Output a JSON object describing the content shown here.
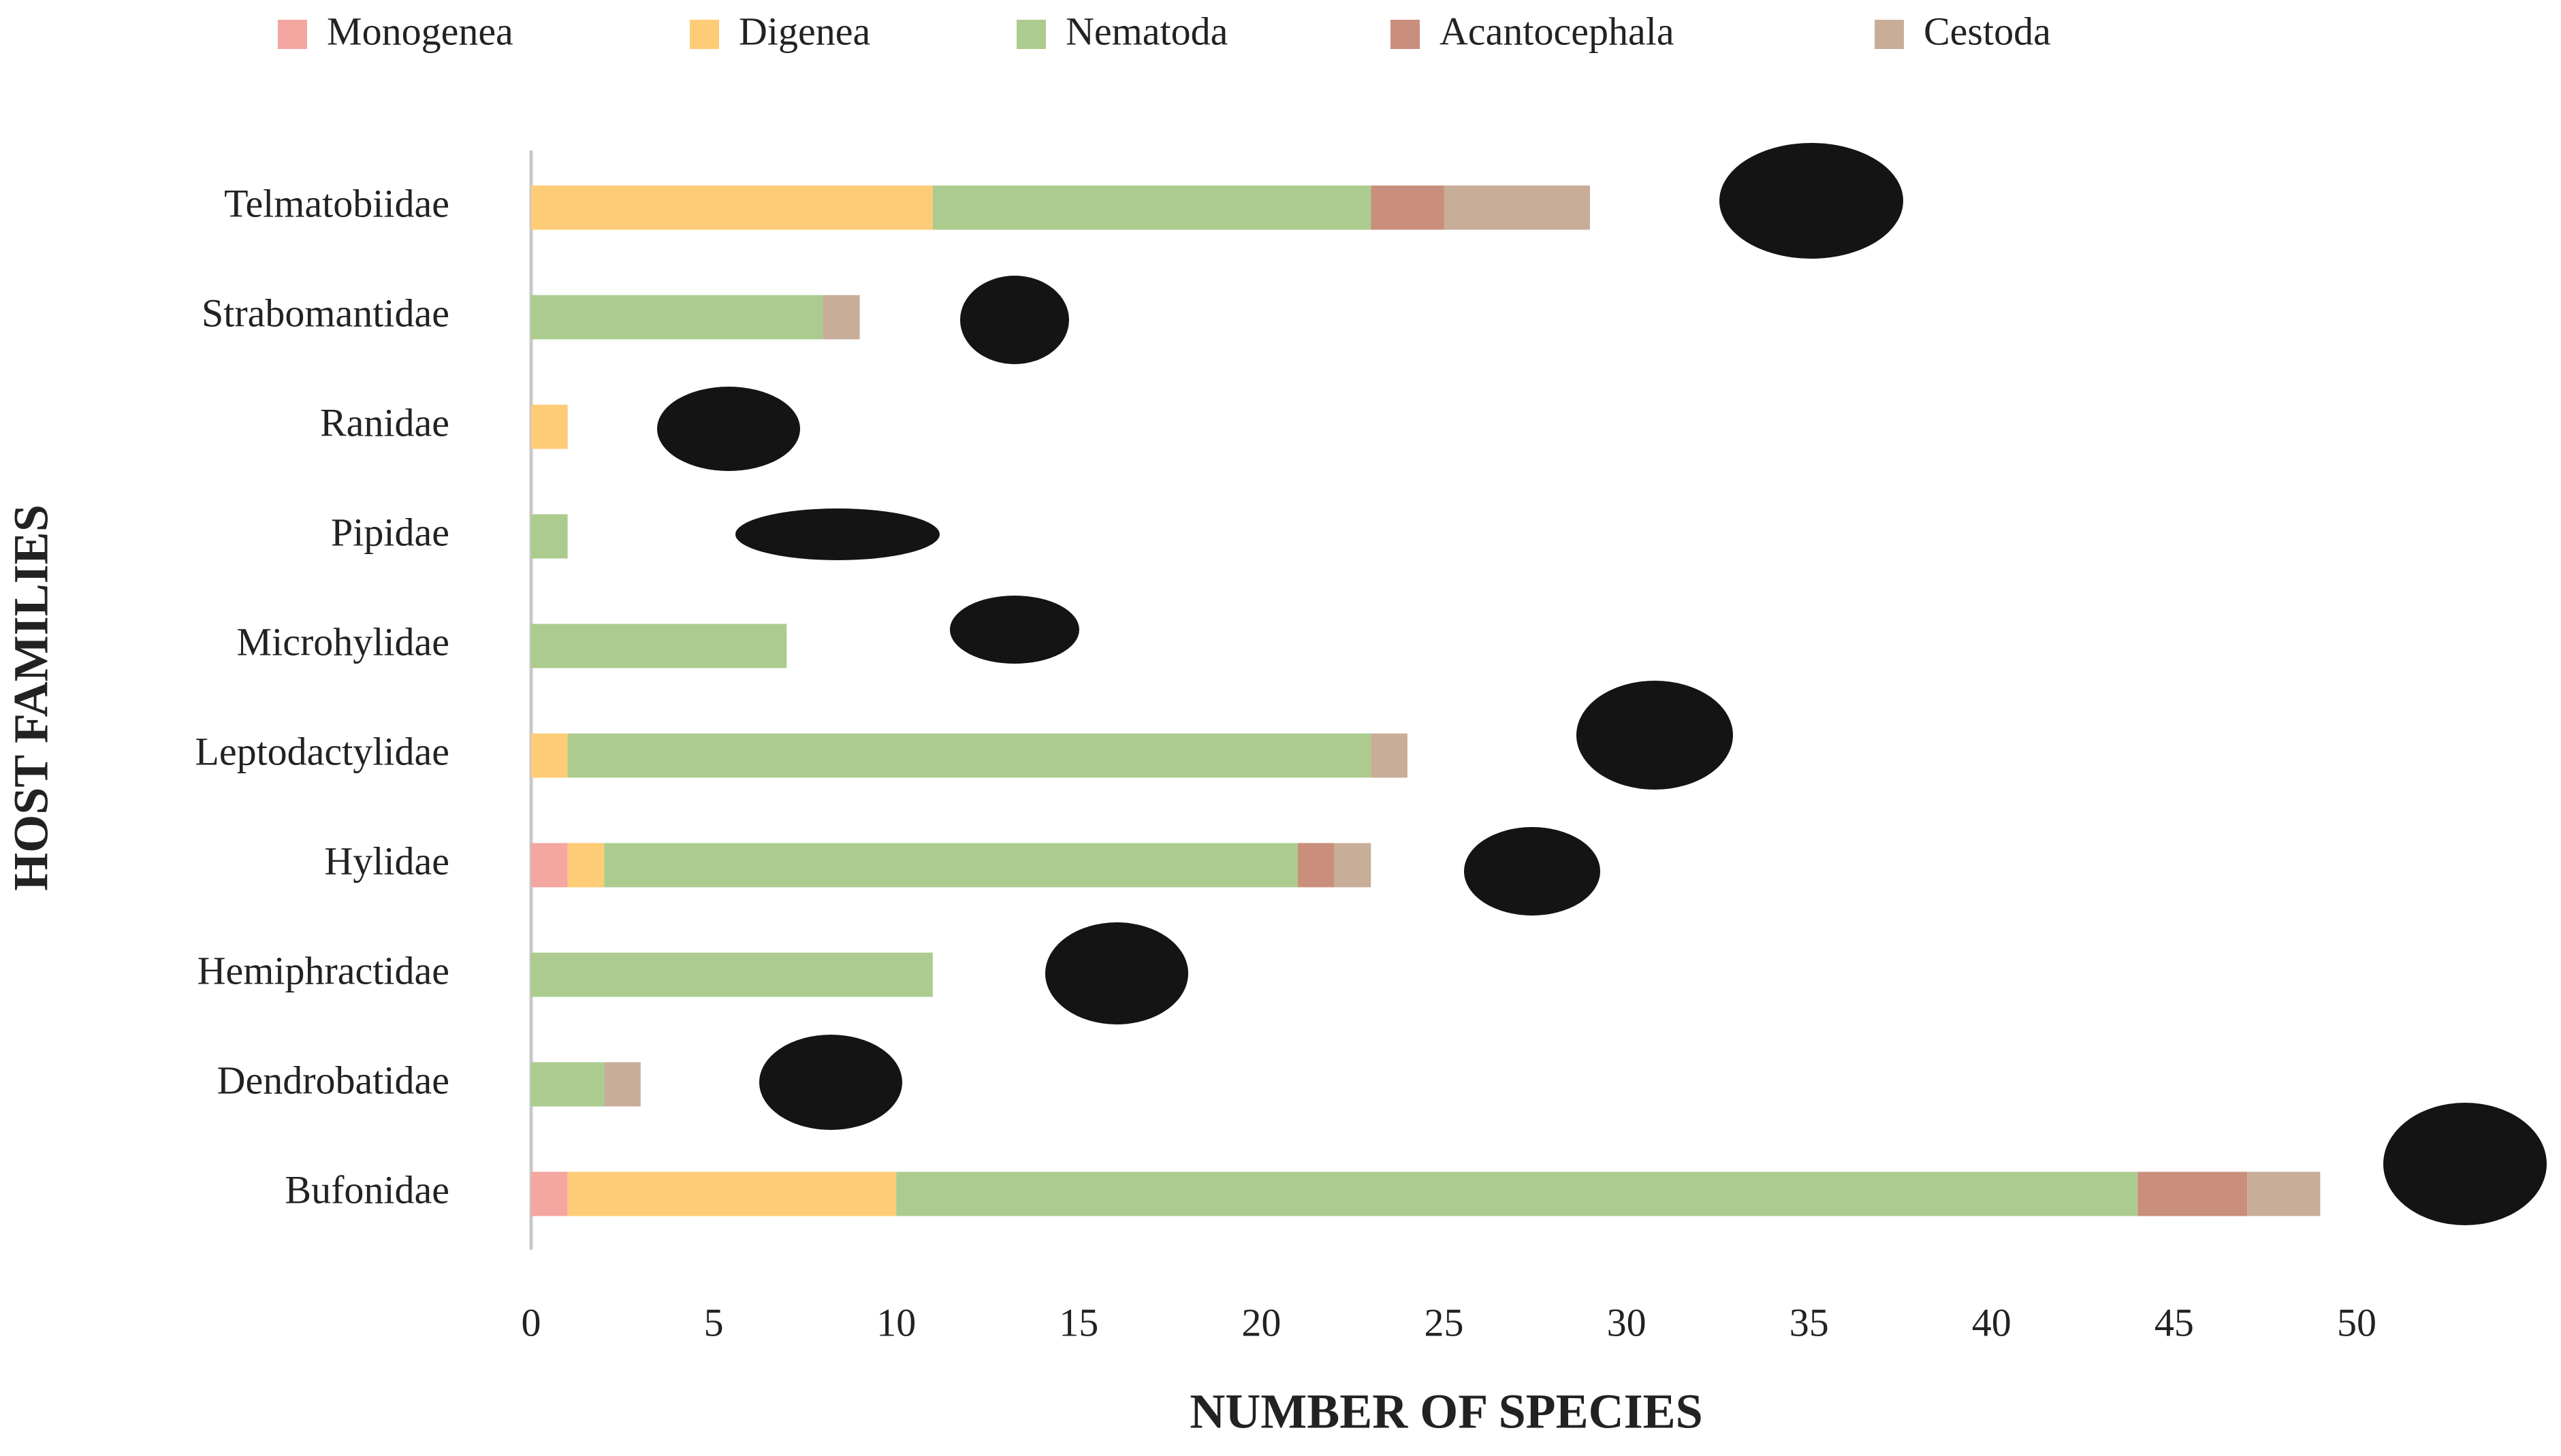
{
  "chart_data": {
    "type": "stacked-barh",
    "xlabel": "NUMBER OF SPECIES",
    "ylabel": "HOST FAMILIES",
    "categories": [
      "Telmatobiidae",
      "Strabomantidae",
      "Ranidae",
      "Pipidae",
      "Microhylidae",
      "Leptodactylidae",
      "Hylidae",
      "Hemiphractidae",
      "Dendrobatidae",
      "Bufonidae"
    ],
    "series": [
      {
        "name": "Monogenea",
        "color": "#f4a6a0",
        "values": [
          0,
          0,
          0,
          0,
          0,
          0,
          1,
          0,
          0,
          1
        ]
      },
      {
        "name": "Digenea",
        "color": "#fecb76",
        "values": [
          11,
          0,
          1,
          0,
          0,
          1,
          1,
          0,
          0,
          9
        ]
      },
      {
        "name": "Nematoda",
        "color": "#abcc8e",
        "values": [
          12,
          8,
          0,
          1,
          7,
          22,
          19,
          11,
          2,
          34
        ]
      },
      {
        "name": "Acantocephala",
        "color": "#c98f7c",
        "values": [
          2,
          0,
          0,
          0,
          0,
          0,
          1,
          0,
          0,
          3
        ]
      },
      {
        "name": "Cestoda",
        "color": "#c8ad98",
        "values": [
          4,
          1,
          0,
          0,
          0,
          1,
          1,
          0,
          1,
          2
        ]
      }
    ],
    "xlim": [
      0,
      50
    ],
    "xticks": [
      0,
      5,
      10,
      15,
      20,
      25,
      30,
      35,
      40,
      45,
      50
    ],
    "legend": "top"
  }
}
